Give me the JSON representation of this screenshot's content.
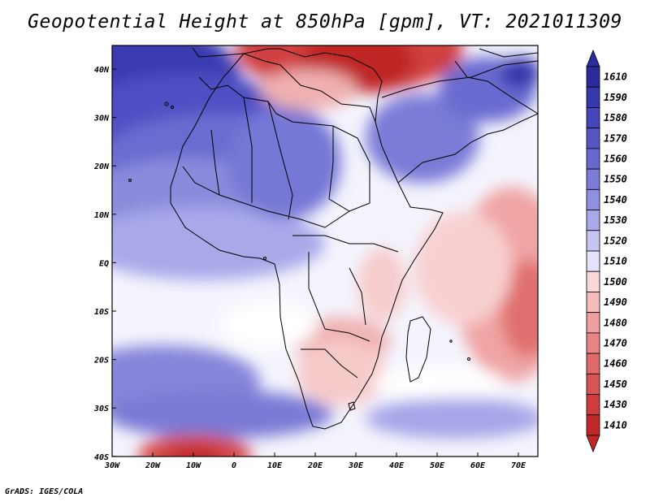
{
  "title": "Geopotential Height at 850hPa [gpm], VT: 2021011309",
  "footer": "GrADS: IGES/COLA",
  "map": {
    "region": "Africa / Middle East",
    "lon_ticks": [
      "30W",
      "20W",
      "10W",
      "0",
      "10E",
      "20E",
      "30E",
      "40E",
      "50E",
      "60E",
      "70E"
    ],
    "lat_ticks": [
      "40N",
      "30N",
      "20N",
      "10N",
      "EQ",
      "10S",
      "20S",
      "30S",
      "40S"
    ]
  },
  "colorbar": {
    "levels": [
      "1610",
      "1590",
      "1580",
      "1570",
      "1560",
      "1550",
      "1540",
      "1530",
      "1520",
      "1510",
      "1500",
      "1490",
      "1480",
      "1470",
      "1460",
      "1450",
      "1430",
      "1410"
    ],
    "colors": [
      "#2b2b9e",
      "#3737ae",
      "#4545bd",
      "#5656c7",
      "#6868cf",
      "#7b7bd8",
      "#9191e1",
      "#a9a9ea",
      "#c6c6f2",
      "#e3e3f9",
      "#fad8d8",
      "#f5bcbc",
      "#ef9f9f",
      "#e88484",
      "#e06a6a",
      "#d85353",
      "#ce3c3c",
      "#c02828"
    ]
  },
  "colors": {
    "low": "#c02828",
    "high": "#2b2b9e",
    "neutral": "#ffffff"
  }
}
